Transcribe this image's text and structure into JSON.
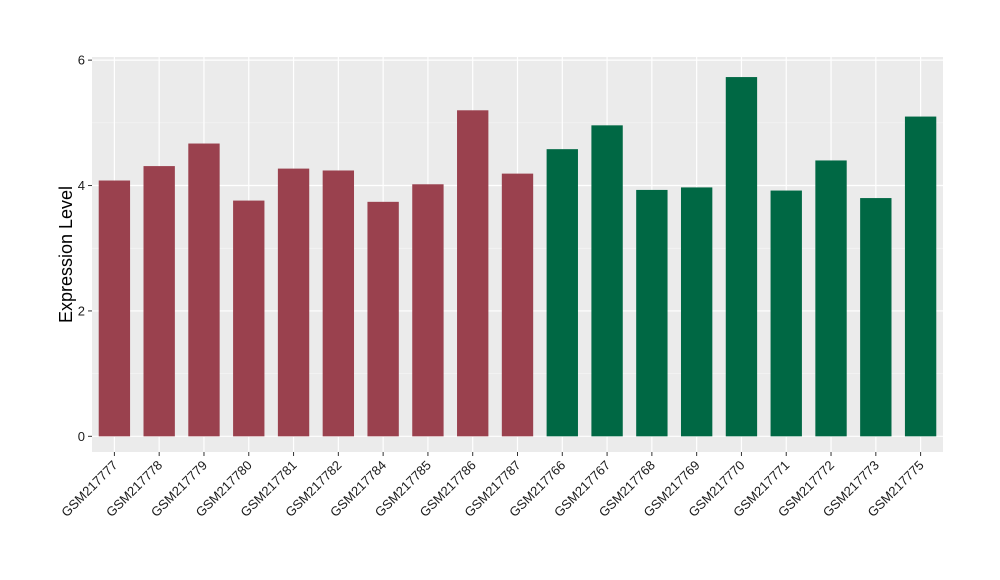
{
  "chart_data": {
    "type": "bar",
    "title": "",
    "xlabel": "",
    "ylabel": "Expression Level",
    "ylim": [
      -0.25,
      6.05
    ],
    "yticks": [
      0,
      2,
      4,
      6
    ],
    "grid": true,
    "categories": [
      "GSM217777",
      "GSM217778",
      "GSM217779",
      "GSM217780",
      "GSM217781",
      "GSM217782",
      "GSM217784",
      "GSM217785",
      "GSM217786",
      "GSM217787",
      "GSM217766",
      "GSM217767",
      "GSM217768",
      "GSM217769",
      "GSM217770",
      "GSM217771",
      "GSM217772",
      "GSM217773",
      "GSM217775"
    ],
    "values": [
      4.08,
      4.31,
      4.67,
      3.76,
      4.27,
      4.24,
      3.74,
      4.02,
      5.2,
      4.19,
      4.58,
      4.96,
      3.93,
      3.97,
      5.73,
      3.92,
      4.4,
      3.8,
      5.1
    ],
    "groups": [
      {
        "color": "#9a414e",
        "count": 10
      },
      {
        "color": "#006844",
        "count": 9
      }
    ]
  },
  "colors": {
    "panel_background": "#ebebeb",
    "grid_major": "#ffffff",
    "grid_minor": "#f5f5f5",
    "tick": "#333333"
  }
}
